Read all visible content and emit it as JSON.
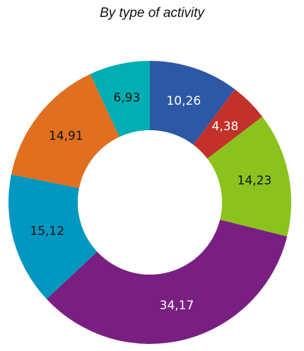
{
  "chart_data": {
    "type": "pie",
    "title": "By type of activity",
    "categories": [
      "",
      "",
      "",
      "",
      "",
      "",
      ""
    ],
    "values": [
      10.26,
      4.38,
      14.23,
      34.17,
      15.12,
      14.91,
      6.93
    ],
    "value_labels": [
      "10,26",
      "4,38",
      "14,23",
      "34,17",
      "15,12",
      "14,91",
      "6,93"
    ],
    "colors": [
      "#2d58a6",
      "#c2312a",
      "#8cc21e",
      "#7a1f82",
      "#0097c0",
      "#e07020",
      "#00adb2"
    ],
    "label_colors": [
      "#ffffff",
      "#ffffff",
      "#111111",
      "#ffffff",
      "#111111",
      "#111111",
      "#111111"
    ],
    "donut": true,
    "start": "12 o'clock",
    "direction": "clockwise",
    "legend": "none"
  }
}
